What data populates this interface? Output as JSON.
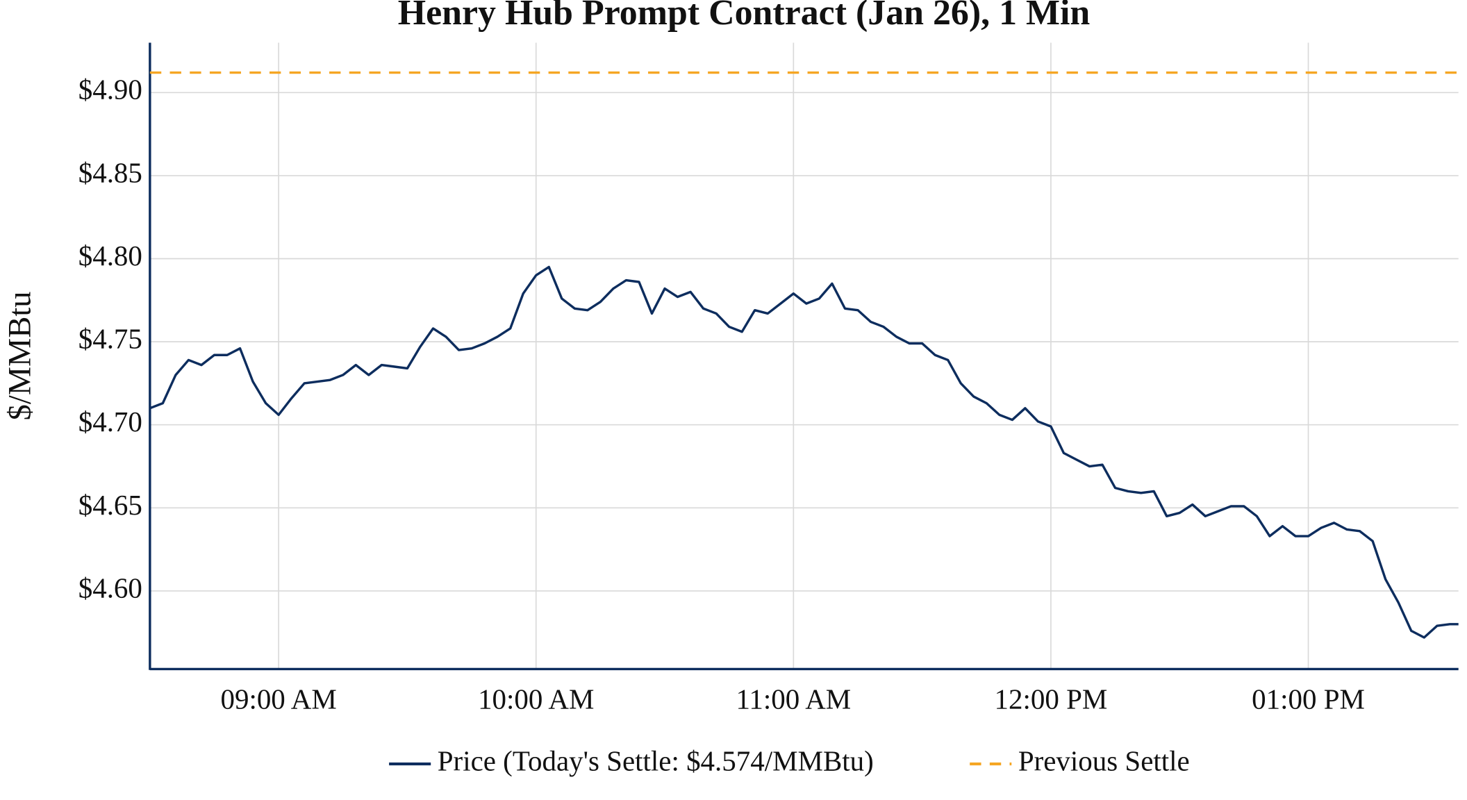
{
  "chart_data": {
    "type": "line",
    "title": "Henry Hub Prompt Contract (Jan 26), 1 Min",
    "y_label": "$/MMBtu",
    "x": [
      "08:30",
      "08:33",
      "08:36",
      "08:39",
      "08:42",
      "08:45",
      "08:48",
      "08:51",
      "08:54",
      "08:57",
      "09:00",
      "09:03",
      "09:06",
      "09:09",
      "09:12",
      "09:15",
      "09:18",
      "09:21",
      "09:24",
      "09:27",
      "09:30",
      "09:33",
      "09:36",
      "09:39",
      "09:42",
      "09:45",
      "09:48",
      "09:51",
      "09:54",
      "09:57",
      "10:00",
      "10:03",
      "10:06",
      "10:09",
      "10:12",
      "10:15",
      "10:18",
      "10:21",
      "10:24",
      "10:27",
      "10:30",
      "10:33",
      "10:36",
      "10:39",
      "10:42",
      "10:45",
      "10:48",
      "10:51",
      "10:54",
      "10:57",
      "11:00",
      "11:03",
      "11:06",
      "11:09",
      "11:12",
      "11:15",
      "11:18",
      "11:21",
      "11:24",
      "11:27",
      "11:30",
      "11:33",
      "11:36",
      "11:39",
      "11:42",
      "11:45",
      "11:48",
      "11:51",
      "11:54",
      "11:57",
      "12:00",
      "12:03",
      "12:06",
      "12:09",
      "12:12",
      "12:15",
      "12:18",
      "12:21",
      "12:24",
      "12:27",
      "12:30",
      "12:33",
      "12:36",
      "12:39",
      "12:42",
      "12:45",
      "12:48",
      "12:51",
      "12:54",
      "12:57",
      "13:00",
      "13:03",
      "13:06",
      "13:09",
      "13:12",
      "13:15",
      "13:18",
      "13:21",
      "13:24",
      "13:27",
      "13:30",
      "13:33",
      "13:35"
    ],
    "series": [
      {
        "name": "Price (Today's Settle: $4.574/MMBtu)",
        "color": "#0d2d5e",
        "values": [
          4.71,
          4.713,
          4.73,
          4.739,
          4.736,
          4.742,
          4.742,
          4.746,
          4.726,
          4.713,
          4.706,
          4.716,
          4.725,
          4.726,
          4.727,
          4.73,
          4.736,
          4.73,
          4.736,
          4.735,
          4.734,
          4.747,
          4.758,
          4.753,
          4.745,
          4.746,
          4.749,
          4.753,
          4.758,
          4.779,
          4.79,
          4.795,
          4.776,
          4.77,
          4.769,
          4.774,
          4.782,
          4.787,
          4.786,
          4.767,
          4.782,
          4.777,
          4.78,
          4.77,
          4.767,
          4.759,
          4.756,
          4.769,
          4.767,
          4.773,
          4.779,
          4.773,
          4.776,
          4.785,
          4.77,
          4.769,
          4.762,
          4.759,
          4.753,
          4.749,
          4.749,
          4.742,
          4.739,
          4.725,
          4.717,
          4.713,
          4.706,
          4.703,
          4.71,
          4.702,
          4.699,
          4.683,
          4.679,
          4.675,
          4.676,
          4.662,
          4.66,
          4.659,
          4.66,
          4.645,
          4.647,
          4.652,
          4.645,
          4.648,
          4.651,
          4.651,
          4.645,
          4.633,
          4.639,
          4.633,
          4.633,
          4.638,
          4.641,
          4.637,
          4.636,
          4.63,
          4.607,
          4.593,
          4.576,
          4.572,
          4.579,
          4.58,
          4.58
        ]
      },
      {
        "name": "Previous Settle",
        "color": "#f5a623",
        "style": "dashed",
        "value": 4.912
      }
    ],
    "xlim": [
      "08:30",
      "13:35"
    ],
    "xticks": [
      {
        "value": "09:00",
        "label": "09:00 AM"
      },
      {
        "value": "10:00",
        "label": "10:00 AM"
      },
      {
        "value": "11:00",
        "label": "11:00 AM"
      },
      {
        "value": "12:00",
        "label": "12:00 PM"
      },
      {
        "value": "13:00",
        "label": "01:00 PM"
      }
    ],
    "ylim": [
      4.553,
      4.93
    ],
    "yticks": [
      {
        "value": 4.6,
        "label": "$4.60"
      },
      {
        "value": 4.65,
        "label": "$4.65"
      },
      {
        "value": 4.7,
        "label": "$4.70"
      },
      {
        "value": 4.75,
        "label": "$4.75"
      },
      {
        "value": 4.8,
        "label": "$4.80"
      },
      {
        "value": 4.85,
        "label": "$4.85"
      },
      {
        "value": 4.9,
        "label": "$4.90"
      }
    ],
    "grid": true,
    "legend": "bottom"
  }
}
